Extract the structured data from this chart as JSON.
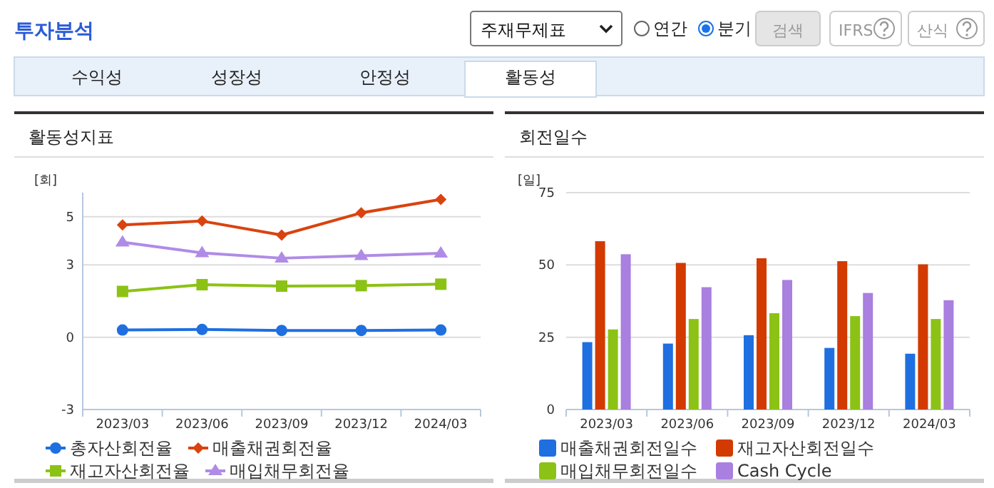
{
  "chart_data": [
    {
      "type": "other",
      "title": "투자분석",
      "annotations": [
        "주재무제표",
        "연간",
        "분기",
        "검색",
        "IFRS",
        "산식",
        "수익성",
        "성장성",
        "안정성",
        "활동성"
      ]
    },
    {
      "type": "line",
      "title": "활동성지표",
      "ylabel": "[회]",
      "categories": [
        "2023/03",
        "2023/06",
        "2023/09",
        "2023/12",
        "2024/03"
      ],
      "ylim": [
        -3,
        6
      ],
      "yticks": [
        -3,
        0,
        3,
        5
      ],
      "grid": "y",
      "legend": "bottom",
      "series": [
        {
          "name": "총자산회전율",
          "color": "#1f6fe0",
          "marker": "circle",
          "values": [
            0.3,
            0.32,
            0.28,
            0.28,
            0.3
          ]
        },
        {
          "name": "매출채권회전율",
          "color": "#d9430f",
          "marker": "diamond",
          "values": [
            4.66,
            4.82,
            4.24,
            5.16,
            5.72
          ]
        },
        {
          "name": "재고자산회전율",
          "color": "#8cc215",
          "marker": "square",
          "values": [
            1.9,
            2.18,
            2.12,
            2.14,
            2.2
          ]
        },
        {
          "name": "매입채무회전율",
          "color": "#b08be6",
          "marker": "triangle",
          "values": [
            3.94,
            3.5,
            3.28,
            3.38,
            3.48
          ]
        }
      ]
    },
    {
      "type": "bar",
      "title": "회전일수",
      "ylabel": "[일]",
      "categories": [
        "2023/03",
        "2023/06",
        "2023/09",
        "2023/12",
        "2024/03"
      ],
      "ylim": [
        0,
        75
      ],
      "yticks": [
        0,
        25,
        50,
        75
      ],
      "grid": "y",
      "legend": "bottom",
      "series": [
        {
          "name": "매출채권회전일수",
          "color": "#1f6fe0",
          "values": [
            23.3,
            22.8,
            25.7,
            21.3,
            19.3
          ]
        },
        {
          "name": "재고자산회전일수",
          "color": "#d23a00",
          "values": [
            58.2,
            50.7,
            52.3,
            51.3,
            50.2
          ]
        },
        {
          "name": "매입채무회전일수",
          "color": "#8cc215",
          "values": [
            27.7,
            31.3,
            33.3,
            32.3,
            31.3
          ]
        },
        {
          "name": "Cash Cycle",
          "color": "#a97fe0",
          "values": [
            53.7,
            42.3,
            44.8,
            40.3,
            37.8
          ]
        }
      ]
    }
  ]
}
